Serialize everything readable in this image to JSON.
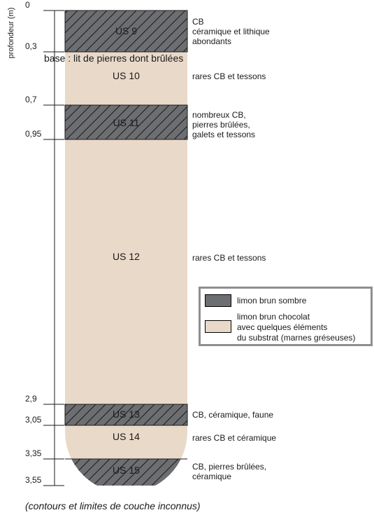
{
  "axis": {
    "title": "profondeur (m)",
    "ticks": [
      {
        "label": "0",
        "depth": 0
      },
      {
        "label": "0,3",
        "depth": 0.3
      },
      {
        "label": "0,7",
        "depth": 0.7
      },
      {
        "label": "0,95",
        "depth": 0.95
      },
      {
        "label": "2,9",
        "depth": 2.9
      },
      {
        "label": "3,05",
        "depth": 3.05
      },
      {
        "label": "3,35",
        "depth": 3.35
      },
      {
        "label": "3,55",
        "depth": 3.55
      }
    ]
  },
  "layers": [
    {
      "name": "US 9",
      "top": 0,
      "bottom": 0.3,
      "type": "dark",
      "description": [
        "CB",
        "céramique et lithique",
        "abondants"
      ]
    },
    {
      "name": "US 10",
      "top": 0.3,
      "bottom": 0.7,
      "type": "light",
      "description": [
        "rares CB et tessons"
      ]
    },
    {
      "name": "US 11",
      "top": 0.7,
      "bottom": 0.95,
      "type": "dark",
      "description": [
        "nombreux CB,",
        "pierres brûlées,",
        "galets et tessons"
      ]
    },
    {
      "name": "US 12",
      "top": 0.95,
      "bottom": 2.9,
      "type": "light",
      "description": [
        "rares CB et tessons"
      ]
    },
    {
      "name": "US 13",
      "top": 2.9,
      "bottom": 3.05,
      "type": "dark",
      "description": [
        "CB, céramique, faune"
      ]
    },
    {
      "name": "US 14",
      "top": 3.05,
      "bottom": 3.35,
      "type": "light",
      "description": [
        "rares CB et céramique"
      ]
    },
    {
      "name": "US 15",
      "top": 3.35,
      "bottom": 3.55,
      "type": "dark",
      "description": [
        "CB, pierres brûlées,",
        "céramique"
      ]
    }
  ],
  "base_note": "base : lit de pierres dont brûlées",
  "legend": {
    "dark": {
      "label": "limon brun sombre",
      "color": "#6d6e71"
    },
    "light": {
      "label": [
        "limon brun chocolat",
        "avec quelques éléments",
        "du substrat (marnes gréseuses)"
      ],
      "color": "#e9d9c9"
    }
  },
  "footnote": "(contours et limites de couche inconnus)"
}
